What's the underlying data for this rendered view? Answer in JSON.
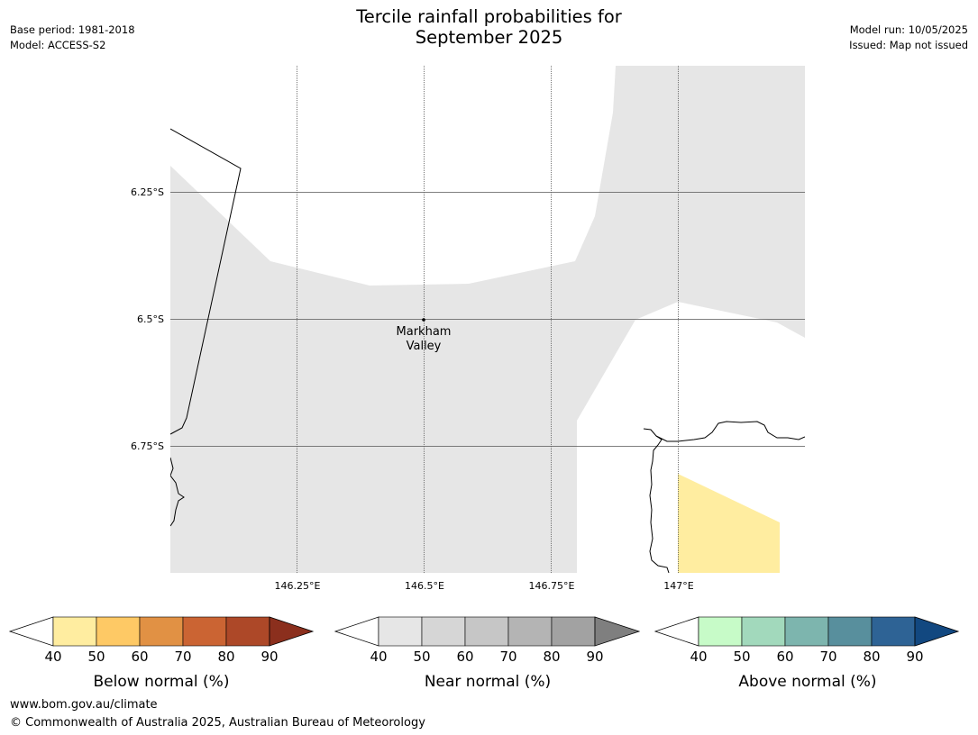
{
  "title_line1": "Tercile rainfall probabilities for",
  "title_line2": "September 2025",
  "meta_left": {
    "base_period": "Base period: 1981-2018",
    "model": "Model: ACCESS-S2"
  },
  "meta_right": {
    "model_run": "Model run: 10/05/2025",
    "issued": "Issued: Map not issued"
  },
  "map": {
    "lat_labels": [
      "6.25°S",
      "6.5°S",
      "6.75°S"
    ],
    "lon_labels": [
      "146.25°E",
      "146.5°E",
      "146.75°E",
      "147°E"
    ],
    "place": {
      "name_line1": "Markham",
      "name_line2": "Valley"
    },
    "colors": {
      "near_normal_40_50": "#e6e6e6",
      "below_normal_40_50": "#ffeda0",
      "coast": "#000000",
      "grid": "#555555"
    }
  },
  "colorbars": [
    {
      "title": "Below normal (%)",
      "ticks": [
        "40",
        "50",
        "60",
        "70",
        "80",
        "90"
      ],
      "colors": [
        "#ffeda0",
        "#fec965",
        "#e19144",
        "#cb6433",
        "#ad4828",
        "#8b2f1d"
      ]
    },
    {
      "title": "Near normal (%)",
      "ticks": [
        "40",
        "50",
        "60",
        "70",
        "80",
        "90"
      ],
      "colors": [
        "#e6e6e6",
        "#d6d6d6",
        "#c6c6c6",
        "#b4b4b4",
        "#a2a2a2",
        "#7f7f7f"
      ]
    },
    {
      "title": "Above normal (%)",
      "ticks": [
        "40",
        "50",
        "60",
        "70",
        "80",
        "90"
      ],
      "colors": [
        "#c7fbc8",
        "#a2d9bc",
        "#7db5ae",
        "#588f9d",
        "#2e6395",
        "#124880"
      ]
    }
  ],
  "footer": {
    "url": "www.bom.gov.au/climate",
    "copyright": "© Commonwealth of Australia 2025, Australian Bureau of Meteorology"
  }
}
